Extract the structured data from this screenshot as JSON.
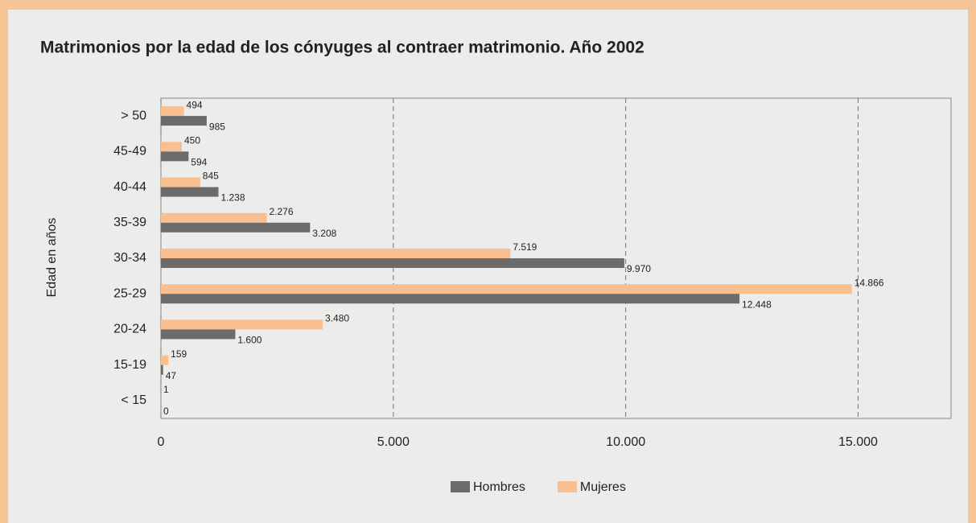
{
  "chart_data": {
    "type": "hbar",
    "title": "Matrimonios por la edad de los cónyuges al contraer matrimonio. Año 2002",
    "y_label": "Edad en años",
    "categories": [
      "> 50",
      "45-49",
      "40-44",
      "35-39",
      "30-34",
      "25-29",
      "20-24",
      "15-19",
      "< 15"
    ],
    "series": [
      {
        "name": "Hombres",
        "color": "#6b6b6b",
        "values": [
          985,
          594,
          1238,
          3208,
          9970,
          12448,
          1600,
          47,
          0
        ],
        "value_labels": [
          "985",
          "594",
          "1.238",
          "3.208",
          "9.970",
          "12.448",
          "1.600",
          "47",
          "0"
        ]
      },
      {
        "name": "Mujeres",
        "color": "#f8bf90",
        "values": [
          494,
          450,
          845,
          2276,
          7519,
          14866,
          3480,
          159,
          1
        ],
        "value_labels": [
          "494",
          "450",
          "845",
          "2.276",
          "7.519",
          "14.866",
          "3.480",
          "159",
          "1"
        ]
      }
    ],
    "xlim": [
      0,
      17000
    ],
    "xticks": [
      0,
      {
        "value": 5000,
        "label": "5.000"
      },
      {
        "value": 10000,
        "label": "10.000"
      },
      {
        "value": 15000,
        "label": "15.000"
      }
    ],
    "grid": true,
    "legend": "bottom"
  }
}
